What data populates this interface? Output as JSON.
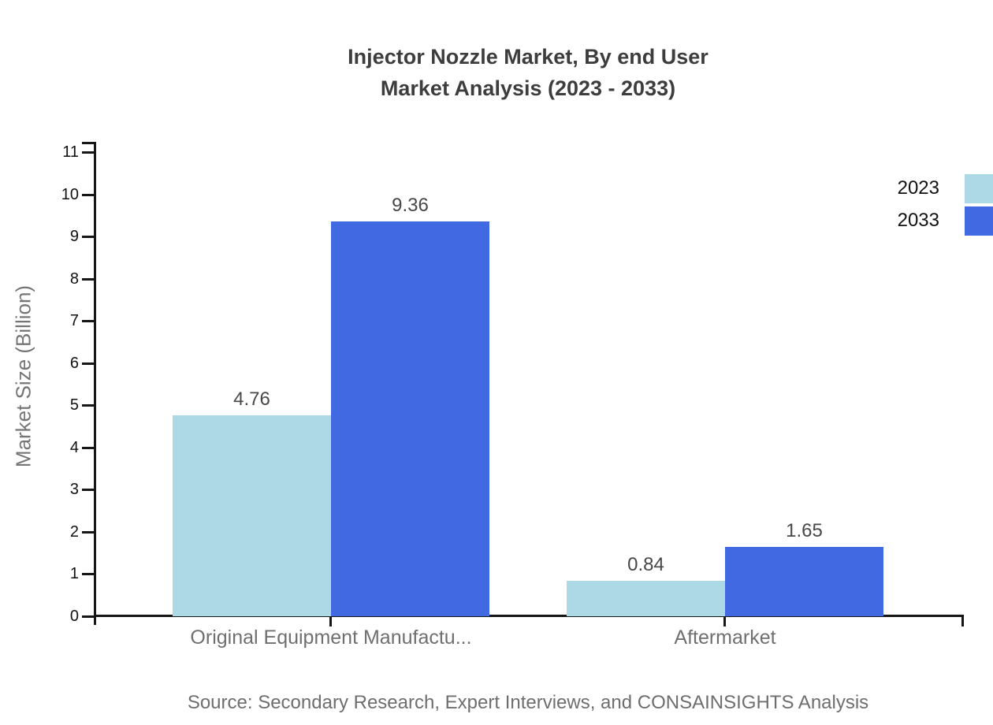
{
  "title": {
    "line1": "Injector Nozzle Market, By end User",
    "line2": "Market Analysis (2023 - 2033)"
  },
  "source": "Source: Secondary Research, Expert Interviews, and CONSAINSIGHTS Analysis",
  "chart_data": {
    "type": "bar",
    "title": "Injector Nozzle Market, By end User Market Analysis (2023 - 2033)",
    "categories": [
      "Original Equipment Manufactu...",
      "Aftermarket"
    ],
    "series": [
      {
        "name": "2023",
        "color": "#ADD8E6",
        "values": [
          4.76,
          0.84
        ]
      },
      {
        "name": "2033",
        "color": "#4169E1",
        "values": [
          9.36,
          1.65
        ]
      }
    ],
    "value_labels": [
      [
        "4.76",
        "0.84"
      ],
      [
        "9.36",
        "1.65"
      ]
    ],
    "xlabel": "",
    "ylabel": "Market Size (Billion)",
    "ylim": [
      0,
      11
    ],
    "y_ticks": [
      0,
      1,
      2,
      3,
      4,
      5,
      6,
      7,
      8,
      9,
      10,
      11
    ],
    "grid": false,
    "legend": {
      "position": "top-right",
      "entries": [
        "2023",
        "2033"
      ]
    }
  }
}
